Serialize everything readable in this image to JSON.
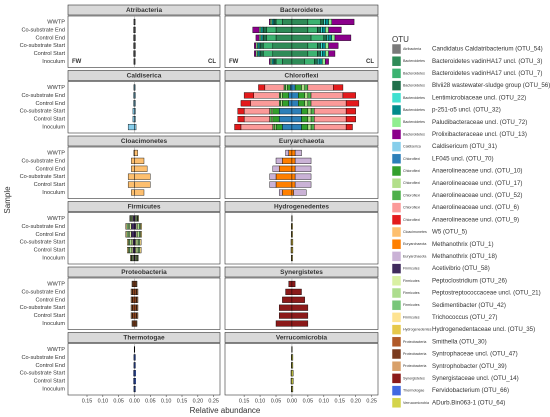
{
  "chart_data": {
    "type": "diverging-stacked-bar",
    "x_label": "Relative abundance",
    "y_label": "Sample",
    "legend_title": "OTU",
    "annotations": [
      "FW",
      "CL"
    ],
    "categories": [
      "WWTP",
      "Co-substrate End",
      "Control End",
      "Co-substrate Start",
      "Control Start",
      "Inoculum"
    ],
    "xlim": [
      -0.21,
      0.27
    ],
    "xticks": [
      {
        "value": -0.15,
        "label": "0.15"
      },
      {
        "value": -0.1,
        "label": "0.10"
      },
      {
        "value": -0.05,
        "label": "0.05"
      },
      {
        "value": 0,
        "label": "0.00"
      },
      0.05,
      {
        "value": 0.1,
        "label": "0.10"
      },
      0.15,
      {
        "value": 0.2,
        "label": "0.20"
      },
      0.25
    ],
    "panels": [
      {
        "title": "Atribacteria",
        "series": [
          {
            "name": "Candidatus Caldatribacterium (OTU_54)",
            "color": "#7a7a7a",
            "fw": [
              -0.002,
              -0.003,
              -0.003,
              -0.003,
              -0.003,
              -0.002
            ],
            "cl": [
              0.002,
              0.003,
              0.003,
              0.003,
              0.003,
              0.002
            ]
          }
        ]
      },
      {
        "title": "Bacteroidetes",
        "series": [
          {
            "name": "Bacteroidetes vadinHA17 uncl. (OTU_3)",
            "color": "#2e8b57",
            "fw": [
              -0.03,
              -0.05,
              -0.05,
              -0.06,
              -0.06,
              -0.03
            ],
            "cl": [
              0.05,
              0.05,
              0.06,
              0.05,
              0.05,
              0.04
            ]
          },
          {
            "name": "Bacteroidetes vadinHA17 uncl. (OTU_7)",
            "color": "#3cb371",
            "fw": [
              -0.02,
              -0.03,
              -0.03,
              -0.03,
              -0.03,
              -0.02
            ],
            "cl": [
              0.04,
              0.03,
              0.04,
              0.03,
              0.03,
              0.03
            ]
          },
          {
            "name": "Blvii28 wastewater-sludge group (OTU_56)",
            "color": "#1f6f4a",
            "fw": [
              -0.005,
              -0.01,
              -0.01,
              -0.01,
              -0.01,
              -0.005
            ],
            "cl": [
              0.01,
              0.01,
              0.01,
              0.01,
              0.01,
              0.01
            ]
          },
          {
            "name": "Lentimicrobiaceae uncl. (OTU_22)",
            "color": "#40e0d0",
            "fw": [
              -0.003,
              -0.003,
              -0.003,
              -0.003,
              -0.003,
              -0.003
            ],
            "cl": [
              0.005,
              0.005,
              0.005,
              0.005,
              0.005,
              0.005
            ]
          },
          {
            "name": "p-251-o5 uncl. (OTU_32)",
            "color": "#008b8b",
            "fw": [
              -0.005,
              -0.005,
              -0.005,
              -0.005,
              -0.005,
              -0.005
            ],
            "cl": [
              0.01,
              0.01,
              0.01,
              0.01,
              0.01,
              0.01
            ]
          },
          {
            "name": "Paludibacteraceae uncl. (OTU_72)",
            "color": "#90ee90",
            "fw": [
              -0.005,
              -0.005,
              -0.005,
              -0.005,
              -0.005,
              -0.005
            ],
            "cl": [
              0.01,
              0.01,
              0.01,
              0.01,
              0.01,
              0.01
            ]
          },
          {
            "name": "Prolixibacteraceae uncl. (OTU_13)",
            "color": "#8b008b",
            "fw": [
              -0.003,
              -0.02,
              -0.01,
              -0.005,
              -0.005,
              -0.003
            ],
            "cl": [
              0.07,
              0.04,
              0.05,
              0.03,
              0.02,
              0.01
            ]
          }
        ]
      },
      {
        "title": "Caldiserica",
        "series": [
          {
            "name": "Caldisericum (OTU_31)",
            "color": "#87ceeb",
            "fw": [
              -0.002,
              -0.003,
              -0.003,
              -0.005,
              -0.005,
              -0.02
            ],
            "cl": [
              0.002,
              0.003,
              0.003,
              0.003,
              0.003,
              0.005
            ]
          }
        ]
      },
      {
        "title": "Chloroflexi",
        "series": [
          {
            "name": "LF045 uncl. (OTU_70)",
            "color": "#2c7fb8",
            "fw": [
              -0.005,
              -0.01,
              -0.01,
              -0.04,
              -0.04,
              -0.03
            ],
            "cl": [
              0.01,
              0.02,
              0.02,
              0.03,
              0.03,
              0.03
            ]
          },
          {
            "name": "Anaerolineaceae uncl. (OTU_10)",
            "color": "#33a02c",
            "fw": [
              -0.01,
              -0.02,
              -0.02,
              -0.02,
              -0.02,
              -0.02
            ],
            "cl": [
              0.02,
              0.02,
              0.02,
              0.02,
              0.02,
              0.02
            ]
          },
          {
            "name": "Anaerolineaceae uncl. (OTU_17)",
            "color": "#b2df8a",
            "fw": [
              -0.005,
              -0.005,
              -0.005,
              -0.005,
              -0.005,
              -0.005
            ],
            "cl": [
              0.01,
              0.01,
              0.01,
              0.01,
              0.01,
              0.01
            ]
          },
          {
            "name": "Anaerolineaceae uncl. (OTU_52)",
            "color": "#4daf4a",
            "fw": [
              -0.005,
              -0.005,
              -0.005,
              -0.005,
              -0.005,
              -0.005
            ],
            "cl": [
              0.01,
              0.01,
              0.01,
              0.01,
              0.01,
              0.01
            ]
          },
          {
            "name": "Anaerolineaceae uncl. (OTU_6)",
            "color": "#fb9a99",
            "fw": [
              -0.06,
              -0.08,
              -0.09,
              -0.08,
              -0.08,
              -0.1
            ],
            "cl": [
              0.08,
              0.1,
              0.11,
              0.1,
              0.1,
              0.1
            ]
          },
          {
            "name": "Anaerolineaceae uncl. (OTU_9)",
            "color": "#e31a1c",
            "fw": [
              -0.02,
              -0.03,
              -0.03,
              -0.02,
              -0.02,
              -0.02
            ],
            "cl": [
              0.03,
              0.04,
              0.04,
              0.03,
              0.03,
              0.02
            ]
          }
        ]
      },
      {
        "title": "Cloacimonetes",
        "series": [
          {
            "name": "W5 (OTU_5)",
            "color": "#fdbf6f",
            "fw": [
              -0.002,
              -0.01,
              -0.01,
              -0.02,
              -0.02,
              -0.01
            ],
            "cl": [
              0.01,
              0.03,
              0.04,
              0.05,
              0.05,
              0.03
            ]
          }
        ]
      },
      {
        "title": "Euryarchaeota",
        "series": [
          {
            "name": "Methanothrix (OTU_1)",
            "color": "#ff7f00",
            "fw": [
              -0.01,
              -0.03,
              -0.04,
              -0.05,
              -0.05,
              -0.03
            ],
            "cl": [
              0.01,
              0.01,
              0.01,
              0.01,
              0.01,
              0.005
            ]
          },
          {
            "name": "Methanothrix (OTU_18)",
            "color": "#cab2d6",
            "fw": [
              -0.01,
              -0.02,
              -0.02,
              -0.02,
              -0.02,
              -0.01
            ],
            "cl": [
              0.02,
              0.05,
              0.05,
              0.05,
              0.05,
              0.04
            ]
          }
        ]
      },
      {
        "title": "Firmicutes",
        "series": [
          {
            "name": "Acetivibrio (OTU_58)",
            "color": "#3f2a5c",
            "fw": [
              -0.005,
              -0.01,
              -0.01,
              -0.005,
              -0.005,
              -0.003
            ],
            "cl": [
              0.003,
              0.005,
              0.005,
              0.003,
              0.003,
              0.002
            ]
          },
          {
            "name": "Peptoclostridium (OTU_26)",
            "color": "#d9f0a3",
            "fw": [
              -0.003,
              -0.005,
              -0.005,
              -0.005,
              -0.005,
              -0.003
            ],
            "cl": [
              0.003,
              0.005,
              0.005,
              0.005,
              0.005,
              0.003
            ]
          },
          {
            "name": "Peptostreptococcaceae uncl. (OTU_21)",
            "color": "#addd8e",
            "fw": [
              -0.003,
              -0.005,
              -0.005,
              -0.005,
              -0.005,
              -0.003
            ],
            "cl": [
              0.003,
              0.005,
              0.005,
              0.005,
              0.005,
              0.003
            ]
          },
          {
            "name": "Sedimentibacter (OTU_42)",
            "color": "#78c679",
            "fw": [
              -0.002,
              -0.004,
              -0.004,
              -0.004,
              -0.004,
              -0.002
            ],
            "cl": [
              0.002,
              0.004,
              0.004,
              0.004,
              0.004,
              0.002
            ]
          },
          {
            "name": "Trichococcus (OTU_27)",
            "color": "#fee391",
            "fw": [
              -0.002,
              -0.004,
              -0.004,
              -0.004,
              -0.004,
              -0.002
            ],
            "cl": [
              0.002,
              0.004,
              0.004,
              0.004,
              0.004,
              0.002
            ]
          }
        ]
      },
      {
        "title": "Hydrogenedentes",
        "series": [
          {
            "name": "Hydrogenedentaceae uncl. (OTU_35)",
            "color": "#e6c84a",
            "fw": [
              -0.001,
              -0.002,
              -0.002,
              -0.003,
              -0.003,
              -0.002
            ],
            "cl": [
              0.001,
              0.002,
              0.002,
              0.003,
              0.003,
              0.002
            ]
          }
        ]
      },
      {
        "title": "Proteobacteria",
        "series": [
          {
            "name": "Smithella (OTU_30)",
            "color": "#b15928",
            "fw": [
              -0.004,
              -0.005,
              -0.005,
              -0.005,
              -0.005,
              -0.004
            ],
            "cl": [
              0.004,
              0.005,
              0.005,
              0.005,
              0.005,
              0.004
            ]
          },
          {
            "name": "Syntrophaceae uncl. (OTU_47)",
            "color": "#7a3b1e",
            "fw": [
              -0.002,
              -0.003,
              -0.003,
              -0.003,
              -0.003,
              -0.002
            ],
            "cl": [
              0.002,
              0.003,
              0.003,
              0.003,
              0.003,
              0.002
            ]
          },
          {
            "name": "Syntrophobacter (OTU_39)",
            "color": "#d8a06a",
            "fw": [
              -0.002,
              -0.003,
              -0.003,
              -0.003,
              -0.003,
              -0.002
            ],
            "cl": [
              0.002,
              0.003,
              0.003,
              0.003,
              0.003,
              0.002
            ]
          }
        ]
      },
      {
        "title": "Synergistetes",
        "series": [
          {
            "name": "Synergistaceae uncl. (OTU_14)",
            "color": "#8b1a1a",
            "fw": [
              -0.01,
              -0.02,
              -0.03,
              -0.04,
              -0.04,
              -0.05
            ],
            "cl": [
              0.01,
              0.03,
              0.04,
              0.05,
              0.05,
              0.05
            ]
          }
        ]
      },
      {
        "title": "Thermotogae",
        "series": [
          {
            "name": "Fervidobacterium (OTU_66)",
            "color": "#4169e1",
            "fw": [
              -0.001,
              -0.002,
              -0.002,
              -0.003,
              -0.003,
              -0.002
            ],
            "cl": [
              0.001,
              0.003,
              0.003,
              0.004,
              0.004,
              0.003
            ]
          }
        ]
      },
      {
        "title": "Verrucomicrobia",
        "series": [
          {
            "name": "ADurb.Bin063-1 (OTU_64)",
            "color": "#d4d44a",
            "fw": [
              -0.001,
              -0.002,
              -0.002,
              -0.003,
              -0.003,
              -0.002
            ],
            "cl": [
              0.001,
              0.003,
              0.003,
              0.004,
              0.004,
              0.003
            ]
          }
        ]
      }
    ]
  }
}
